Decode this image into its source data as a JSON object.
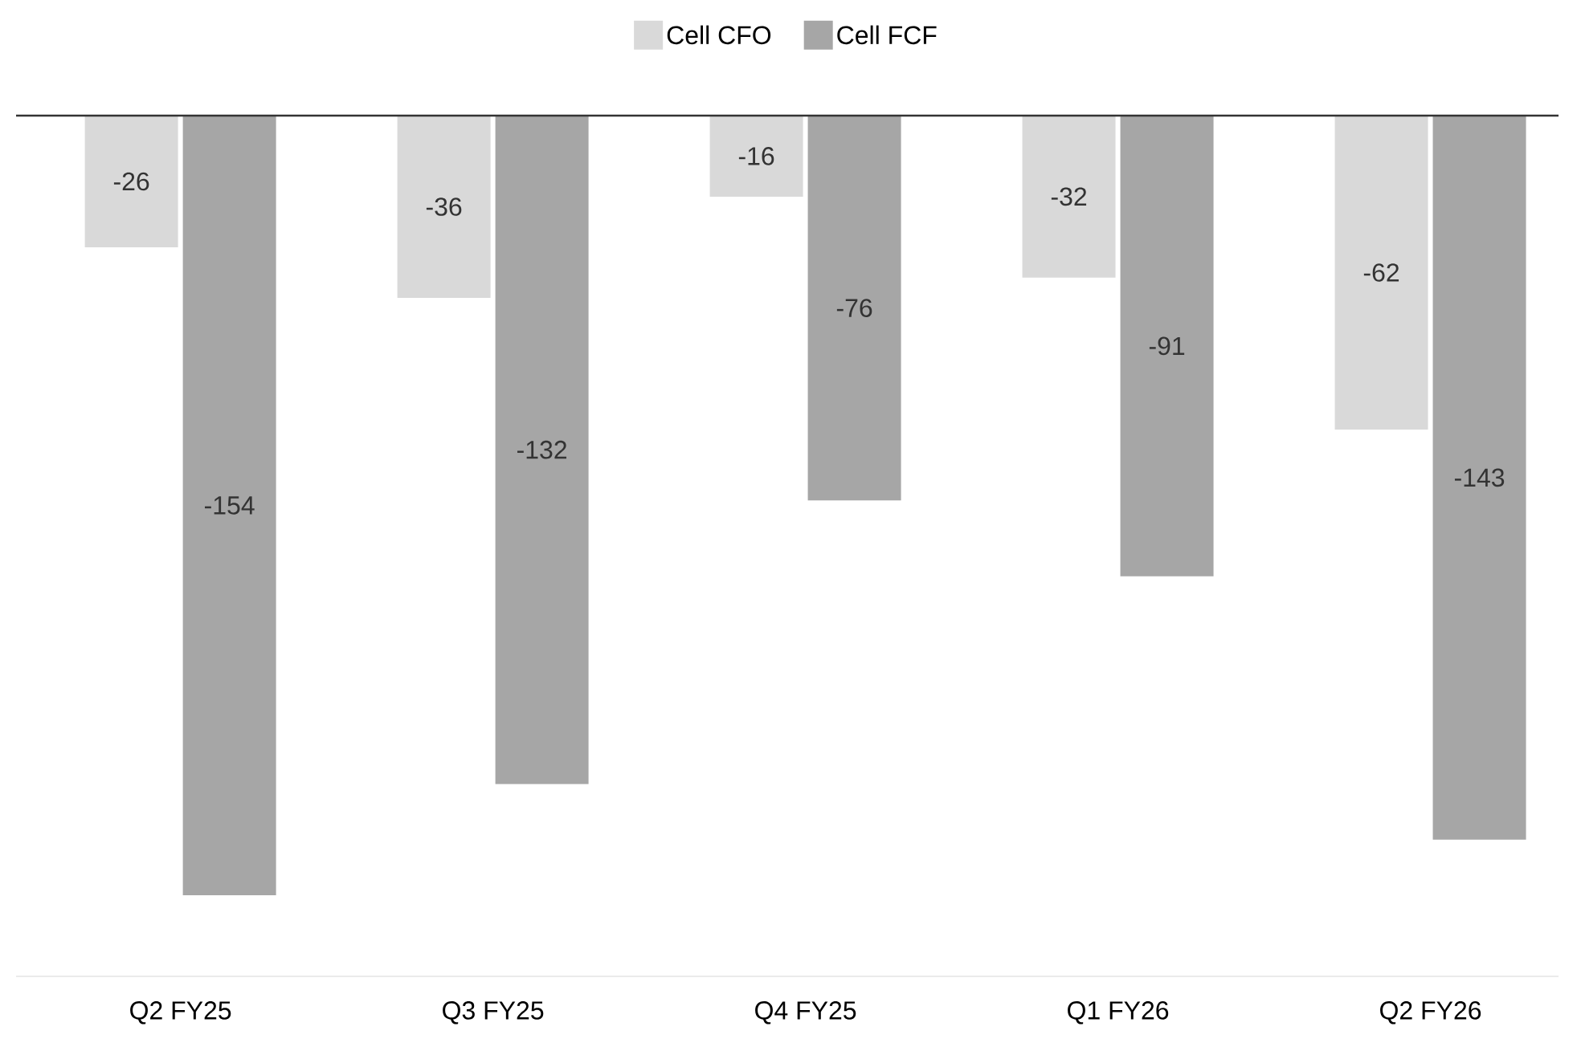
{
  "chart_data": {
    "type": "bar",
    "categories": [
      "Q2 FY25",
      "Q3 FY25",
      "Q4 FY25",
      "Q1 FY26",
      "Q2 FY26"
    ],
    "series": [
      {
        "name": "Cell CFO",
        "color": "#d9d9d9",
        "values": [
          -26,
          -36,
          -16,
          -32,
          -62
        ]
      },
      {
        "name": "Cell FCF",
        "color": "#a6a6a6",
        "values": [
          -154,
          -132,
          -76,
          -91,
          -143
        ]
      }
    ],
    "ylim": [
      -170,
      0
    ],
    "ref_lines": [
      {
        "axis": "y",
        "value": 0,
        "color": "#333333"
      }
    ],
    "data_labels": true,
    "legend": "top",
    "tick_labels": "x"
  }
}
